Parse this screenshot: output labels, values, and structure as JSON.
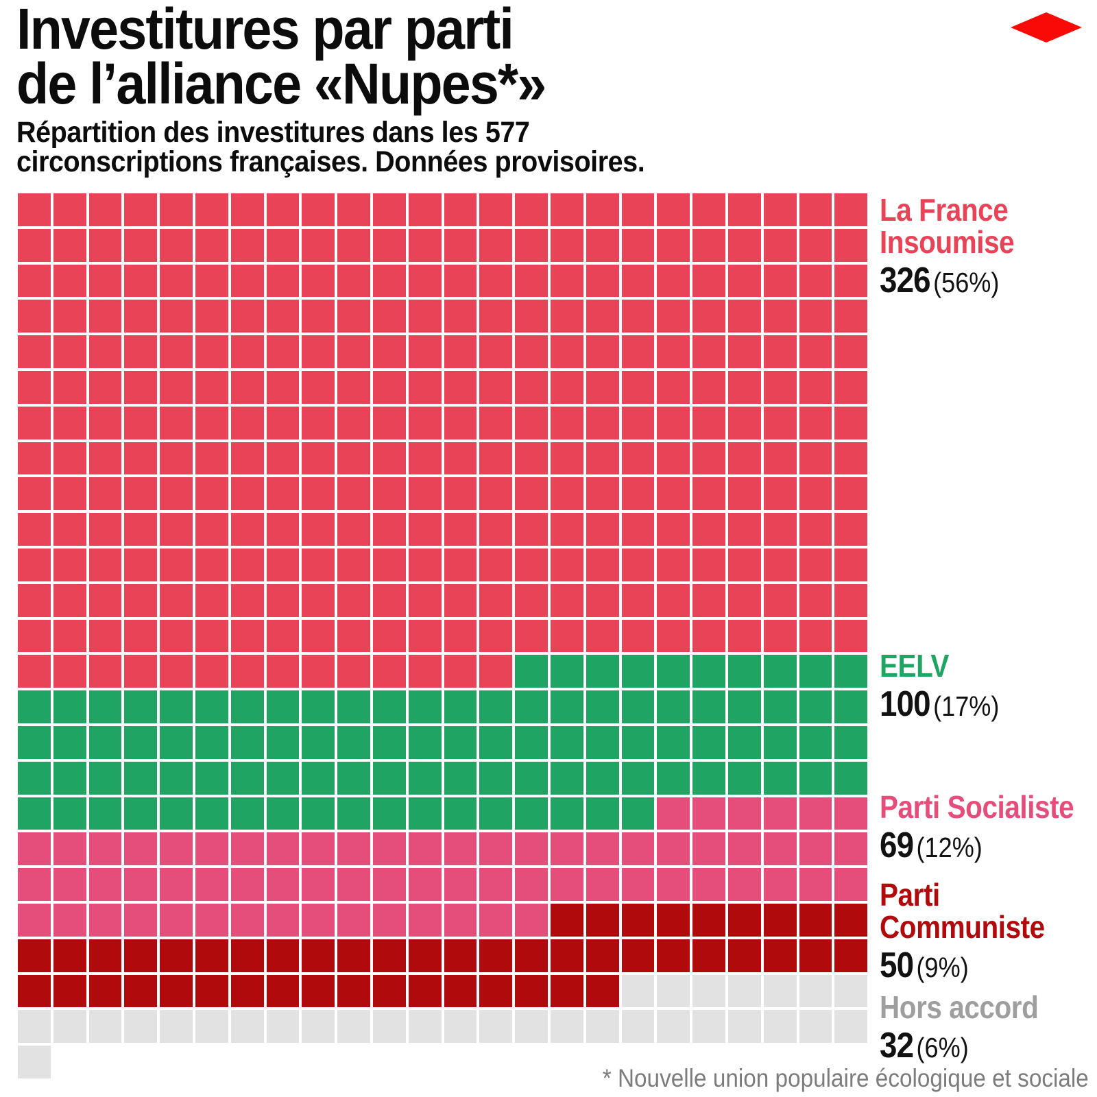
{
  "logo": {
    "icon": "diamond-icon",
    "color": "#fa0a06"
  },
  "header": {
    "title_lines": [
      "Investitures par parti",
      "de l’alliance «Nupes*»"
    ],
    "subtitle_lines": [
      "Répartition des investitures dans les 577",
      "circonscriptions françaises. Données provisoires."
    ]
  },
  "chart_data": {
    "type": "waffle",
    "title": "Investitures par parti de l’alliance «Nupes*»",
    "subtitle": "Répartition des investitures dans les 577 circonscriptions françaises. Données provisoires.",
    "total_units": 577,
    "grid_columns": 24,
    "grid_rows": 25,
    "cell_unit": "1 circonscription",
    "legend_position": "right",
    "series": [
      {
        "name": "La France Insoumise",
        "label_lines": [
          "La France",
          "Insoumise"
        ],
        "value": 326,
        "value_label": "326",
        "percent_label": "(56%)",
        "percent": 56,
        "color": "#e84356",
        "label_color": "#e84356"
      },
      {
        "name": "EELV",
        "label_lines": [
          "EELV"
        ],
        "value": 100,
        "value_label": "100",
        "percent_label": "(17%)",
        "percent": 17,
        "color": "#1fa463",
        "label_color": "#1fa463"
      },
      {
        "name": "Parti Socialiste",
        "label_lines": [
          "Parti Socialiste"
        ],
        "value": 69,
        "value_label": "69",
        "percent_label": "(12%)",
        "percent": 12,
        "color": "#e54d7a",
        "label_color": "#e54d7a"
      },
      {
        "name": "Parti Communiste",
        "label_lines": [
          "Parti",
          "Communiste"
        ],
        "value": 50,
        "value_label": "50",
        "percent_label": "(9%)",
        "percent": 9,
        "color": "#b10a0c",
        "label_color": "#b10a0c"
      },
      {
        "name": "Hors accord",
        "label_lines": [
          "Hors accord"
        ],
        "value": 32,
        "value_label": "32",
        "percent_label": "(6%)",
        "percent": 6,
        "color": "#e2e2e2",
        "label_color": "#9e9e9e"
      }
    ]
  },
  "footnote": "* Nouvelle union populaire écologique et sociale"
}
